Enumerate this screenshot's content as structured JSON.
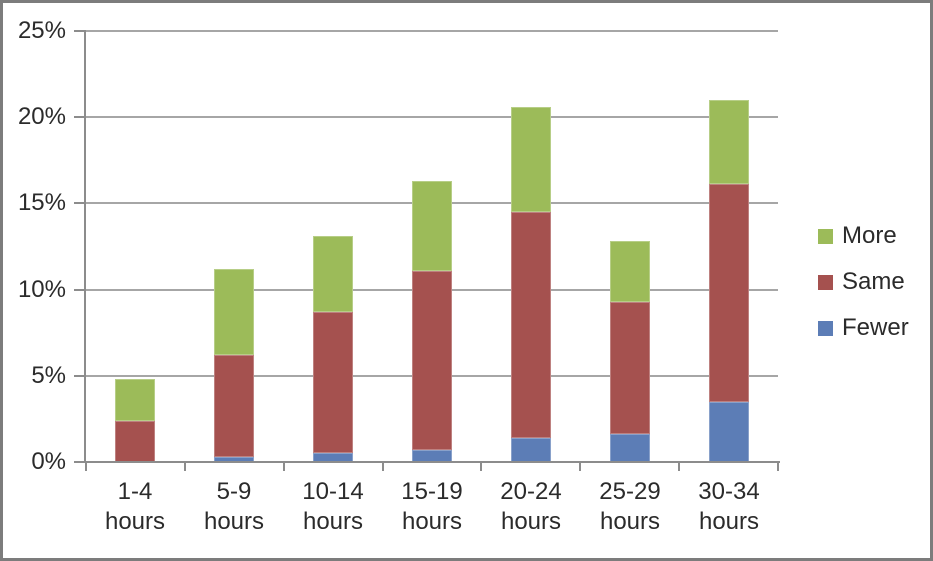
{
  "chart_data": {
    "type": "bar",
    "stacked": true,
    "title": "",
    "categories": [
      "1-4 hours",
      "5-9 hours",
      "10-14 hours",
      "15-19 hours",
      "20-24 hours",
      "25-29 hours",
      "30-34 hours"
    ],
    "category_label_lines": [
      [
        "1-4",
        "hours"
      ],
      [
        "5-9",
        "hours"
      ],
      [
        "10-14",
        "hours"
      ],
      [
        "15-19",
        "hours"
      ],
      [
        "20-24",
        "hours"
      ],
      [
        "25-29",
        "hours"
      ],
      [
        "30-34",
        "hours"
      ]
    ],
    "series": [
      {
        "name": "Fewer",
        "color": "#5C7DB6",
        "values": [
          0.0,
          0.3,
          0.5,
          0.7,
          1.4,
          1.6,
          3.5
        ]
      },
      {
        "name": "Same",
        "color": "#A5514F",
        "values": [
          2.4,
          5.9,
          8.2,
          10.4,
          13.1,
          7.7,
          12.6
        ]
      },
      {
        "name": "More",
        "color": "#9CBB59",
        "values": [
          2.4,
          5.0,
          4.4,
          5.2,
          6.1,
          3.5,
          4.9
        ]
      }
    ],
    "stack_totals": [
      4.8,
      11.2,
      13.1,
      16.3,
      20.6,
      12.8,
      21.0
    ],
    "ylim": [
      0,
      25
    ],
    "ytick_step": 5,
    "ytick_labels": [
      "0%",
      "5%",
      "10%",
      "15%",
      "20%",
      "25%"
    ],
    "grid": true,
    "legend": {
      "position": "right",
      "entries": [
        "More",
        "Same",
        "Fewer"
      ]
    }
  },
  "colors": {
    "background": "#FFFFFF",
    "frame_border": "#7C7C7C",
    "gridline": "#A6A6A6",
    "axis": "#8C8C8C",
    "text": "#2B2B2B"
  }
}
